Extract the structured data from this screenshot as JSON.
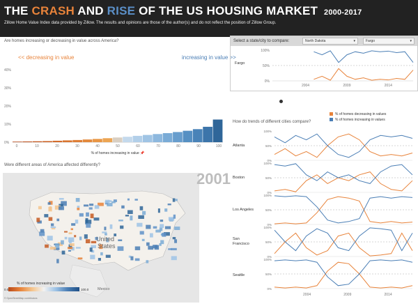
{
  "header": {
    "title_prefix": "THE",
    "title_crash": "CRASH",
    "title_and": "AND",
    "title_rise": "RISE",
    "title_suffix": "OF THE US HOUSING MARKET",
    "years": "2000-2017",
    "subtitle": "Zillow Home Value Index data provided by Zillow. The results and opinions are those of the author(s) and do not reflect the position of Zillow Group."
  },
  "histogram": {
    "question": "Are homes increasing or decreasing in value across America?",
    "left_label": "<< decreasing in value",
    "right_label": "increasing in value >>",
    "xlabel": "% of homes increasing in value 📌",
    "y_ticks": [
      "40%",
      "30%",
      "20%",
      "10%",
      "0%"
    ],
    "x_ticks": [
      "0",
      "10",
      "20",
      "30",
      "40",
      "50",
      "60",
      "70",
      "80",
      "90",
      "100"
    ]
  },
  "selector": {
    "prompt": "Select a state/city to compare:",
    "state_value": "North Dakota",
    "city_value": "Fargo",
    "city_label": "Fargo",
    "y_ticks": [
      "100%",
      "50%",
      "0%"
    ],
    "x_ticks": [
      "2004",
      "2009",
      "2014"
    ]
  },
  "map": {
    "question": "Were different areas of America affected differently?",
    "year": "2001",
    "country_label_1": "United",
    "country_label_2": "States",
    "mexico_label": "Mexico",
    "legend_title": "% of homes increasing in value",
    "legend_min": "0.0",
    "legend_max": "100.0",
    "credit": "© OpenStreetMap contributors"
  },
  "trends": {
    "question": "How do trends of different cities compare?",
    "legend_orange": "% of homes decreasing in values",
    "legend_blue": "% of homes increasing in values",
    "cities": [
      "Atlanta",
      "Boston",
      "Los Angeles",
      "San Francisco",
      "Seattle"
    ],
    "y_ticks": [
      "100%",
      "50%",
      "0%"
    ],
    "x_ticks": [
      "2004",
      "2009",
      "2014"
    ]
  },
  "colors": {
    "orange": "#e8833a",
    "blue": "#4a7eb5",
    "header_bg": "#222222"
  },
  "chart_data": [
    {
      "type": "bar",
      "title": "Are homes increasing or decreasing in value across America?",
      "xlabel": "% of homes increasing in value",
      "ylabel": "",
      "ylim": [
        0,
        40
      ],
      "categories": [
        0,
        5,
        10,
        15,
        20,
        25,
        30,
        35,
        40,
        45,
        50,
        55,
        60,
        65,
        70,
        75,
        80,
        85,
        90,
        95,
        100
      ],
      "values": [
        0.3,
        0.4,
        0.5,
        0.6,
        0.8,
        1.0,
        1.2,
        1.5,
        1.8,
        2.2,
        2.6,
        3.0,
        3.5,
        4.0,
        4.5,
        5.0,
        5.6,
        6.3,
        7.2,
        8.5,
        12.5
      ]
    },
    {
      "type": "line",
      "title": "Fargo",
      "x": [
        2005,
        2006,
        2007,
        2008,
        2009,
        2010,
        2011,
        2012,
        2013,
        2014,
        2015,
        2016,
        2017
      ],
      "series": [
        {
          "name": "% of homes increasing in values",
          "values": [
            95,
            85,
            98,
            60,
            85,
            95,
            90,
            98,
            95,
            97,
            92,
            95,
            60
          ]
        },
        {
          "name": "% of homes decreasing in values",
          "values": [
            5,
            15,
            2,
            40,
            15,
            5,
            10,
            2,
            5,
            3,
            8,
            5,
            35
          ]
        }
      ],
      "ylim": [
        0,
        100
      ]
    }
  ]
}
